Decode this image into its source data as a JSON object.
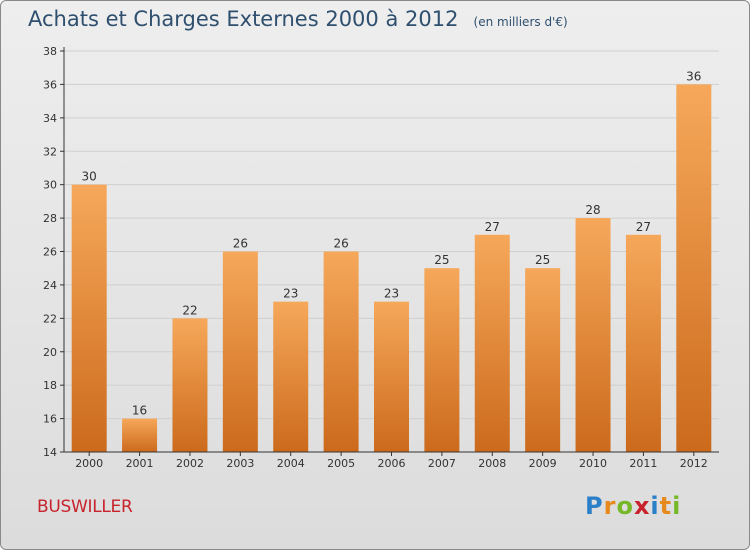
{
  "title": "Achats et Charges Externes 2000 à 2012",
  "unit": "(en milliers d'€)",
  "commune": "BUSWILLER",
  "brand": "Proxiti",
  "colors": {
    "bar_light": "#f6a85a",
    "bar_dark": "#cc6a1c",
    "title": "#2f4f6f",
    "commune": "#c8232c",
    "grid": "#cfcfcf",
    "axis": "#333333"
  },
  "chart_data": {
    "type": "bar",
    "title": "Achats et Charges Externes 2000 à 2012",
    "xlabel": "",
    "ylabel": "",
    "categories": [
      "2000",
      "2001",
      "2002",
      "2003",
      "2004",
      "2005",
      "2006",
      "2007",
      "2008",
      "2009",
      "2010",
      "2011",
      "2012"
    ],
    "values": [
      30,
      16,
      22,
      26,
      23,
      26,
      23,
      25,
      27,
      25,
      28,
      27,
      36
    ],
    "data_labels": [
      "30",
      "16",
      "22",
      "26",
      "23",
      "26",
      "23",
      "25",
      "27",
      "25",
      "28",
      "27",
      "36"
    ],
    "ylim": [
      14,
      38
    ],
    "yticks": [
      14,
      16,
      18,
      20,
      22,
      24,
      26,
      28,
      30,
      32,
      34,
      36,
      38
    ],
    "grid": true
  }
}
